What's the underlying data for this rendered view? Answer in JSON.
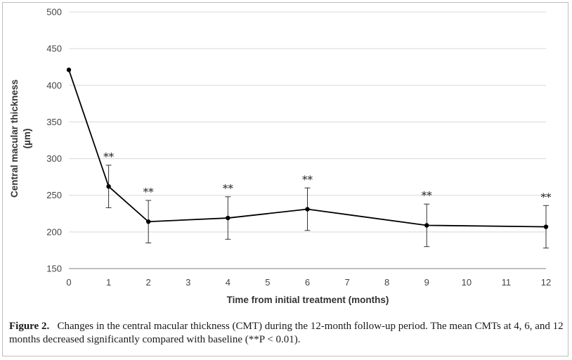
{
  "chart_data": {
    "type": "line",
    "xlabel": "Time from initial treatment (months)",
    "ylabel_line1": "Central macular thickness",
    "ylabel_line2": "(µm)",
    "xlim": [
      0,
      12
    ],
    "ylim": [
      150,
      500
    ],
    "x_ticks": [
      0,
      1,
      2,
      3,
      4,
      5,
      6,
      7,
      8,
      9,
      10,
      11,
      12
    ],
    "y_ticks": [
      150,
      200,
      250,
      300,
      350,
      400,
      450,
      500
    ],
    "grid": "horizontal",
    "points": [
      {
        "x": 0,
        "y": 421,
        "err": 0,
        "sig": ""
      },
      {
        "x": 1,
        "y": 262,
        "err": 29,
        "sig": "**"
      },
      {
        "x": 2,
        "y": 214,
        "err": 29,
        "sig": "**"
      },
      {
        "x": 4,
        "y": 219,
        "err": 29,
        "sig": "**"
      },
      {
        "x": 6,
        "y": 231,
        "err": 29,
        "sig": "**"
      },
      {
        "x": 9,
        "y": 209,
        "err": 29,
        "sig": "**"
      },
      {
        "x": 12,
        "y": 207,
        "err": 29,
        "sig": "**"
      }
    ]
  },
  "caption": {
    "label": "Figure 2.",
    "text": "Changes in the central macular thickness (CMT) during the 12-month follow-up period. The mean CMTs at 4, 6, and 12 months decreased significantly compared with baseline (**P < 0.01)."
  }
}
